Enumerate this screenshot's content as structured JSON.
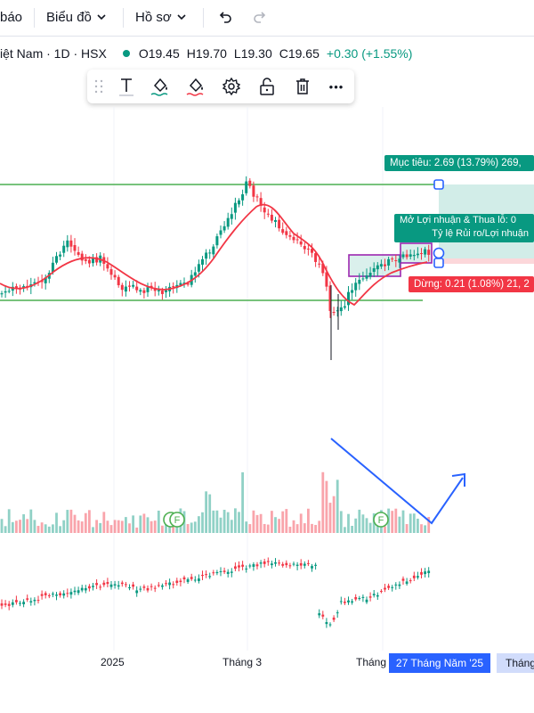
{
  "toolbar": {
    "report_label": "báo",
    "chart_label": "Biểu đồ",
    "profile_label": "Hồ sơ",
    "chevron": "⌄",
    "undo_icon": "undo-icon",
    "redo_icon": "redo-icon"
  },
  "symbol": {
    "title": "iệt Nam · 1D · HSX",
    "status_color": "#089981",
    "open": "O19.45",
    "high": "H19.70",
    "low": "L19.30",
    "close": "C19.65",
    "change": "+0.30 (+1.55%)",
    "change_color": "#089981"
  },
  "drawing_toolbar": {
    "icons": [
      "drag-handle-icon",
      "text-icon",
      "fill-color-icon",
      "line-color-icon",
      "settings-icon",
      "lock-icon",
      "delete-icon",
      "more-icon"
    ],
    "more_label": "•••"
  },
  "position_tool": {
    "target_label": "Mục tiêu: 2.69 (13.79%) 269,",
    "pnl_label": "Mở Lợi nhuận & Thua lỗ: 0",
    "ratio_label": "Tỷ lệ Rủi ro/Lợi nhuận",
    "stop_label": "Dừng: 0.21 (1.08%) 21, 2",
    "target_color": "#089981",
    "stop_color": "#f23645"
  },
  "markers": {
    "f_label": "F"
  },
  "xaxis": {
    "labels": [
      "2025",
      "Tháng 3",
      "Tháng"
    ],
    "current": "27 Tháng Năm '25",
    "next": "Tháng"
  },
  "colors": {
    "up": "#089981",
    "down": "#f23645",
    "ma": "#f23645",
    "support": "#4caf50",
    "trend": "#2962ff",
    "box": "#9c27b0"
  }
}
